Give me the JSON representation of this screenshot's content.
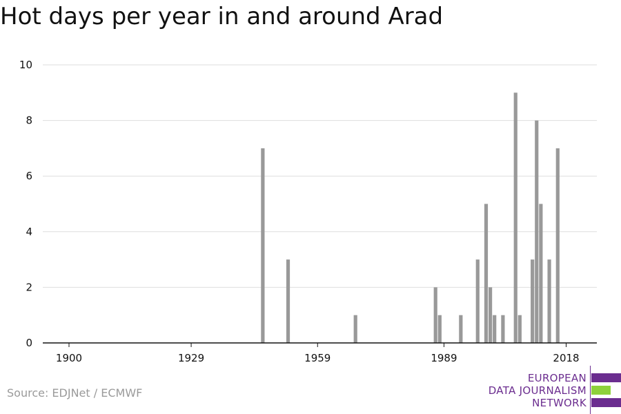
{
  "title": "Hot days per year in and around Arad",
  "source": "Source: EDJNet / ECMWF",
  "logo": {
    "lines": [
      "EUROPEAN",
      "DATA JOURNALISM",
      "NETWORK"
    ]
  },
  "colors": {
    "bar": "#999999",
    "grid": "#dddddd",
    "axis": "#111111",
    "brand_purple": "#6b2d8f",
    "brand_green": "#8ed13b"
  },
  "chart_data": {
    "type": "bar",
    "title": "Hot days per year in and around Arad",
    "xlabel": "",
    "ylabel": "",
    "xlim": [
      1894,
      2021
    ],
    "ylim": [
      0,
      10
    ],
    "xticks": [
      1900,
      1929,
      1959,
      1989,
      2018
    ],
    "yticks": [
      0,
      2,
      4,
      6,
      8,
      10
    ],
    "grid": true,
    "x": [
      1946,
      1952,
      1968,
      1987,
      1988,
      1993,
      1997,
      1999,
      2000,
      2001,
      2003,
      2006,
      2007,
      2010,
      2011,
      2012,
      2014,
      2016
    ],
    "values": [
      7,
      3,
      1,
      2,
      1,
      1,
      3,
      5,
      2,
      1,
      1,
      9,
      1,
      3,
      8,
      5,
      3,
      7
    ]
  }
}
